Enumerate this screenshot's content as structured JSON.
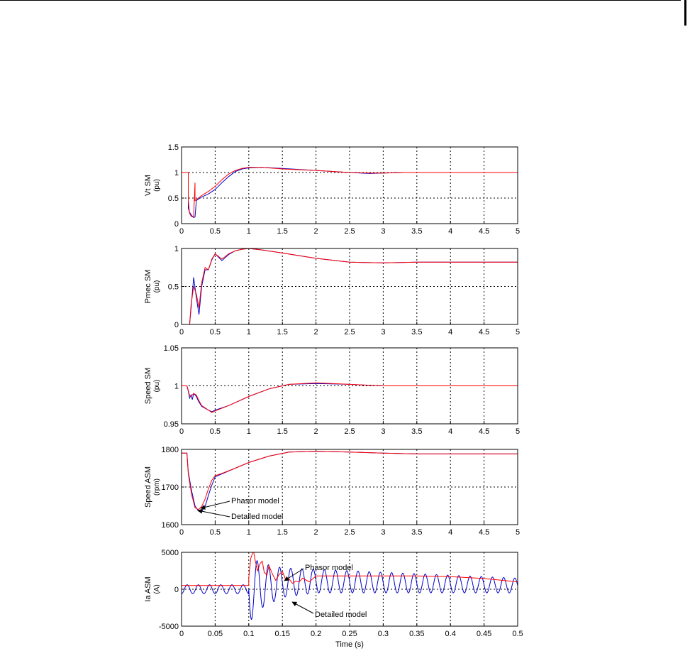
{
  "chart_data": [
    {
      "type": "line",
      "ylabel_line1": "Vt  SM",
      "ylabel_line2": "(pu)",
      "xlim": [
        0,
        5
      ],
      "ylim": [
        0,
        1.5
      ],
      "xticks": [
        "0",
        "0.5",
        "1",
        "1.5",
        "2",
        "2.5",
        "3",
        "3.5",
        "4",
        "4.5",
        "5"
      ],
      "yticks": [
        "0",
        "0.5",
        "1",
        "1.5"
      ],
      "grid": true,
      "series": [
        {
          "color": "#0000cc",
          "x": [
            0,
            0.1,
            0.1,
            0.12,
            0.15,
            0.18,
            0.2,
            0.22,
            0.25,
            0.3,
            0.4,
            0.5,
            0.6,
            0.7,
            0.8,
            0.9,
            1.0,
            1.2,
            1.5,
            2.0,
            2.5,
            2.8,
            3.0,
            3.3,
            3.6,
            4.0,
            5.0
          ],
          "y": [
            1,
            1,
            0.3,
            0.22,
            0.16,
            0.12,
            0.13,
            0.45,
            0.48,
            0.52,
            0.58,
            0.67,
            0.8,
            0.92,
            1.02,
            1.07,
            1.09,
            1.1,
            1.08,
            1.04,
            1.0,
            0.98,
            0.99,
            1.0,
            1.0,
            1.0,
            1.0
          ]
        },
        {
          "color": "#ff0000",
          "x": [
            0,
            0.1,
            0.1,
            0.12,
            0.14,
            0.16,
            0.18,
            0.2,
            0.2,
            0.22,
            0.25,
            0.3,
            0.4,
            0.5,
            0.6,
            0.7,
            0.8,
            0.9,
            1.0,
            1.2,
            1.5,
            2.0,
            2.5,
            2.8,
            3.0,
            3.3,
            3.6,
            4.0,
            5.0
          ],
          "y": [
            1,
            1,
            0.45,
            0.2,
            0.15,
            0.13,
            0.15,
            0.8,
            0.45,
            0.47,
            0.5,
            0.55,
            0.63,
            0.73,
            0.86,
            0.97,
            1.04,
            1.08,
            1.1,
            1.1,
            1.07,
            1.04,
            1.0,
            0.99,
            0.99,
            1.0,
            1.0,
            1.0,
            1.0
          ]
        }
      ]
    },
    {
      "type": "line",
      "ylabel_line1": "Pmec  SM",
      "ylabel_line2": "(pu)",
      "xlim": [
        0,
        5
      ],
      "ylim": [
        0,
        1
      ],
      "xticks": [
        "0",
        "0.5",
        "1",
        "1.5",
        "2",
        "2.5",
        "3",
        "3.5",
        "4",
        "4.5",
        "5"
      ],
      "yticks": [
        "0",
        "0.5",
        "1"
      ],
      "grid": true,
      "series": [
        {
          "color": "#0000cc",
          "x": [
            0,
            0.12,
            0.14,
            0.18,
            0.22,
            0.26,
            0.3,
            0.35,
            0.4,
            0.45,
            0.5,
            0.6,
            0.7,
            0.8,
            0.9,
            1.0,
            1.2,
            1.5,
            2.0,
            2.5,
            3.0,
            3.5,
            4.0,
            5.0
          ],
          "y": [
            0,
            0,
            0.2,
            0.62,
            0.35,
            0.13,
            0.5,
            0.72,
            0.72,
            0.85,
            0.93,
            0.84,
            0.92,
            0.97,
            0.99,
            1.0,
            0.98,
            0.94,
            0.87,
            0.82,
            0.81,
            0.82,
            0.82,
            0.82
          ]
        },
        {
          "color": "#ff0000",
          "x": [
            0,
            0.12,
            0.14,
            0.18,
            0.22,
            0.26,
            0.3,
            0.35,
            0.4,
            0.45,
            0.5,
            0.6,
            0.7,
            0.8,
            0.9,
            1.0,
            1.2,
            1.5,
            2.0,
            2.5,
            3.0,
            3.5,
            4.0,
            5.0
          ],
          "y": [
            0,
            0,
            0.25,
            0.5,
            0.4,
            0.22,
            0.55,
            0.75,
            0.72,
            0.86,
            0.93,
            0.86,
            0.93,
            0.97,
            0.99,
            1.0,
            0.98,
            0.94,
            0.87,
            0.82,
            0.81,
            0.82,
            0.82,
            0.82
          ]
        }
      ]
    },
    {
      "type": "line",
      "ylabel_line1": "Speed  SM",
      "ylabel_line2": "(pu)",
      "xlim": [
        0,
        5
      ],
      "ylim": [
        0.95,
        1.05
      ],
      "xticks": [
        "0",
        "0.5",
        "1",
        "1.5",
        "2",
        "2.5",
        "3",
        "3.5",
        "4",
        "4.5",
        "5"
      ],
      "yticks": [
        "0.95",
        "1",
        "1.05"
      ],
      "grid": true,
      "series": [
        {
          "color": "#0000cc",
          "x": [
            0,
            0.08,
            0.1,
            0.12,
            0.14,
            0.16,
            0.18,
            0.22,
            0.25,
            0.3,
            0.4,
            0.45,
            0.5,
            0.7,
            1.0,
            1.3,
            1.6,
            2.0,
            2.5,
            3.0,
            3.5,
            4.0,
            5.0
          ],
          "y": [
            1,
            1,
            0.993,
            0.984,
            0.988,
            0.982,
            0.99,
            0.986,
            0.98,
            0.973,
            0.968,
            0.966,
            0.968,
            0.974,
            0.986,
            0.996,
            1.002,
            1.003,
            1.002,
            1.0,
            1.0,
            1.0,
            1.0
          ]
        },
        {
          "color": "#ff0000",
          "x": [
            0,
            0.08,
            0.1,
            0.12,
            0.14,
            0.16,
            0.18,
            0.22,
            0.25,
            0.3,
            0.4,
            0.45,
            0.5,
            0.7,
            1.0,
            1.3,
            1.6,
            2.0,
            2.5,
            3.0,
            3.5,
            4.0,
            5.0
          ],
          "y": [
            1,
            1,
            0.994,
            0.987,
            0.986,
            0.988,
            0.99,
            0.988,
            0.982,
            0.974,
            0.968,
            0.965,
            0.967,
            0.974,
            0.986,
            0.996,
            1.002,
            1.004,
            1.002,
            1.0,
            1.0,
            1.0,
            1.0
          ]
        }
      ]
    },
    {
      "type": "line",
      "ylabel_line1": "Speed  ASM",
      "ylabel_line2": "(rpm)",
      "xlim": [
        0,
        5
      ],
      "ylim": [
        1600,
        1800
      ],
      "xticks": [
        "0",
        "0.5",
        "1",
        "1.5",
        "2",
        "2.5",
        "3",
        "3.5",
        "4",
        "4.5",
        "5"
      ],
      "yticks": [
        "1600",
        "1700",
        "1800"
      ],
      "grid": true,
      "series": [
        {
          "color": "#0000cc",
          "x": [
            0,
            0.08,
            0.1,
            0.15,
            0.2,
            0.25,
            0.3,
            0.35,
            0.4,
            0.45,
            0.5,
            0.6,
            0.8,
            1.0,
            1.3,
            1.6,
            2.0,
            2.5,
            3.0,
            3.5,
            4.0,
            5.0
          ],
          "y": [
            1790,
            1790,
            1740,
            1690,
            1650,
            1636,
            1635,
            1648,
            1678,
            1705,
            1727,
            1735,
            1750,
            1765,
            1782,
            1793,
            1795,
            1793,
            1790,
            1788,
            1788,
            1788
          ]
        },
        {
          "color": "#ff0000",
          "x": [
            0,
            0.08,
            0.1,
            0.15,
            0.2,
            0.25,
            0.3,
            0.35,
            0.4,
            0.45,
            0.5,
            0.6,
            0.8,
            1.0,
            1.3,
            1.6,
            2.0,
            2.5,
            3.0,
            3.5,
            4.0,
            5.0
          ],
          "y": [
            1790,
            1790,
            1735,
            1680,
            1645,
            1640,
            1648,
            1668,
            1695,
            1718,
            1730,
            1736,
            1750,
            1765,
            1782,
            1793,
            1795,
            1793,
            1790,
            1788,
            1788,
            1788
          ]
        }
      ]
    },
    {
      "type": "line",
      "ylabel_line1": "Ia ASM",
      "ylabel_line2": "(A)",
      "xlabel": "Time (s)",
      "xlim": [
        0,
        0.5
      ],
      "ylim": [
        -5000,
        5000
      ],
      "xticks": [
        "0",
        "0.05",
        "0.1",
        "0.15",
        "0.2",
        "0.25",
        "0.3",
        "0.35",
        "0.4",
        "0.45",
        "0.5"
      ],
      "yticks": [
        "-5000",
        "0",
        "5000"
      ],
      "grid": true,
      "series": [
        {
          "color": "#0000cc",
          "description": "Detailed model",
          "freq_hz": 60,
          "pre_fault_amplitude": 600,
          "fault_time": 0.1,
          "envelope_x": [
            0.1,
            0.12,
            0.15,
            0.2,
            0.25,
            0.3,
            0.35,
            0.4,
            0.45,
            0.5
          ],
          "envelope_mean": [
            0,
            500,
            900,
            1100,
            1000,
            900,
            800,
            700,
            600,
            500
          ],
          "envelope_amplitude": [
            4500,
            3000,
            2000,
            1600,
            1500,
            1400,
            1300,
            1200,
            1100,
            1000
          ]
        },
        {
          "color": "#ff0000",
          "description": "Phasor model",
          "x": [
            0,
            0.1,
            0.1,
            0.103,
            0.107,
            0.11,
            0.113,
            0.117,
            0.12,
            0.123,
            0.127,
            0.13,
            0.135,
            0.14,
            0.145,
            0.15,
            0.155,
            0.16,
            0.165,
            0.17,
            0.175,
            0.18,
            0.19,
            0.2,
            0.25,
            0.3,
            0.35,
            0.4,
            0.45,
            0.5
          ],
          "y": [
            500,
            500,
            1500,
            4200,
            5200,
            3700,
            2500,
            3500,
            3800,
            2300,
            1900,
            3200,
            2100,
            1200,
            2000,
            2400,
            1300,
            1400,
            800,
            1100,
            1000,
            1500,
            1000,
            1800,
            1800,
            1800,
            1800,
            1700,
            1450,
            1000
          ]
        }
      ]
    }
  ],
  "annotations": {
    "speed_asm_phasor": "Phasor model",
    "speed_asm_detailed": "Detailed model",
    "ia_asm_phasor": "Phasor model",
    "ia_asm_detailed": "Detailed model"
  }
}
